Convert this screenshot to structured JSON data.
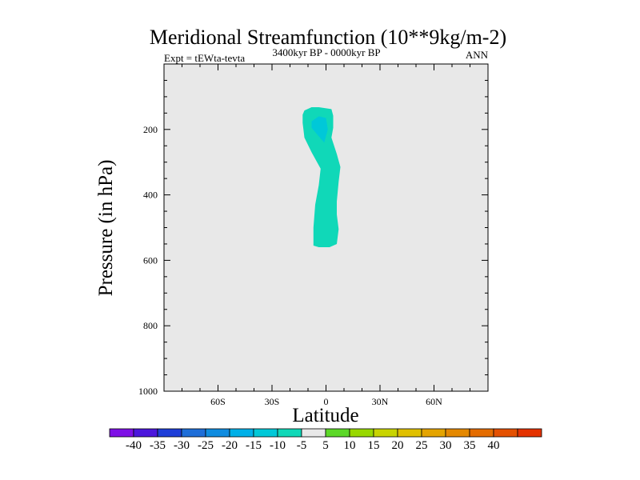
{
  "chart_data": {
    "type": "contour",
    "title": "Meridional Streamfunction (10**9kg/m-2)",
    "subtitle_left": "Expt = tEWta-tevta",
    "subtitle_center": "3400kyr BP - 0000kyr BP",
    "subtitle_right": "ANN",
    "xlabel": "Latitude",
    "ylabel": "Pressure (in hPa)",
    "xlim": [
      -90,
      90
    ],
    "ylim": [
      1000,
      0
    ],
    "x_ticks": [
      {
        "value": -60,
        "label": "60S"
      },
      {
        "value": -30,
        "label": "30S"
      },
      {
        "value": 0,
        "label": "0"
      },
      {
        "value": 30,
        "label": "30N"
      },
      {
        "value": 60,
        "label": "60N"
      }
    ],
    "y_ticks": [
      {
        "value": 200,
        "label": "200"
      },
      {
        "value": 400,
        "label": "400"
      },
      {
        "value": 600,
        "label": "600"
      },
      {
        "value": 800,
        "label": "800"
      },
      {
        "value": 1000,
        "label": "1000"
      }
    ],
    "background_color": "#e8e8e8",
    "colorbar": {
      "colors": [
        "#7e10e6",
        "#4b16dc",
        "#1e3ed8",
        "#1e6ed8",
        "#0f8ce0",
        "#00b0e8",
        "#00c8d8",
        "#10d8b8",
        "#e8e8e8",
        "#5cd828",
        "#98d800",
        "#c8d400",
        "#e0c000",
        "#e4a400",
        "#e48800",
        "#e46c00",
        "#e45000",
        "#e43200"
      ],
      "labels": [
        "-40",
        "-35",
        "-30",
        "-25",
        "-20",
        "-15",
        "-10",
        "-5",
        "5",
        "10",
        "15",
        "20",
        "25",
        "30",
        "35",
        "40"
      ]
    },
    "regions": [
      {
        "level": "-10 to -5",
        "color": "#10d8b8",
        "points": [
          [
            -12,
            142
          ],
          [
            -8,
            132
          ],
          [
            -4,
            132
          ],
          [
            3,
            138
          ],
          [
            4,
            158
          ],
          [
            4,
            195
          ],
          [
            3,
            225
          ],
          [
            6,
            275
          ],
          [
            8,
            315
          ],
          [
            7,
            360
          ],
          [
            6,
            420
          ],
          [
            6,
            460
          ],
          [
            7,
            505
          ],
          [
            6,
            550
          ],
          [
            2,
            560
          ],
          [
            -4,
            560
          ],
          [
            -7,
            555
          ],
          [
            -7,
            500
          ],
          [
            -6,
            430
          ],
          [
            -4,
            370
          ],
          [
            -3,
            320
          ],
          [
            -8,
            270
          ],
          [
            -12,
            225
          ],
          [
            -13,
            180
          ],
          [
            -13,
            155
          ]
        ]
      },
      {
        "level": "-15 to -10",
        "color": "#00c8d8",
        "points": [
          [
            -8,
            175
          ],
          [
            -4,
            160
          ],
          [
            0,
            165
          ],
          [
            1,
            200
          ],
          [
            -1,
            240
          ],
          [
            -5,
            215
          ],
          [
            -8,
            195
          ]
        ]
      }
    ]
  }
}
